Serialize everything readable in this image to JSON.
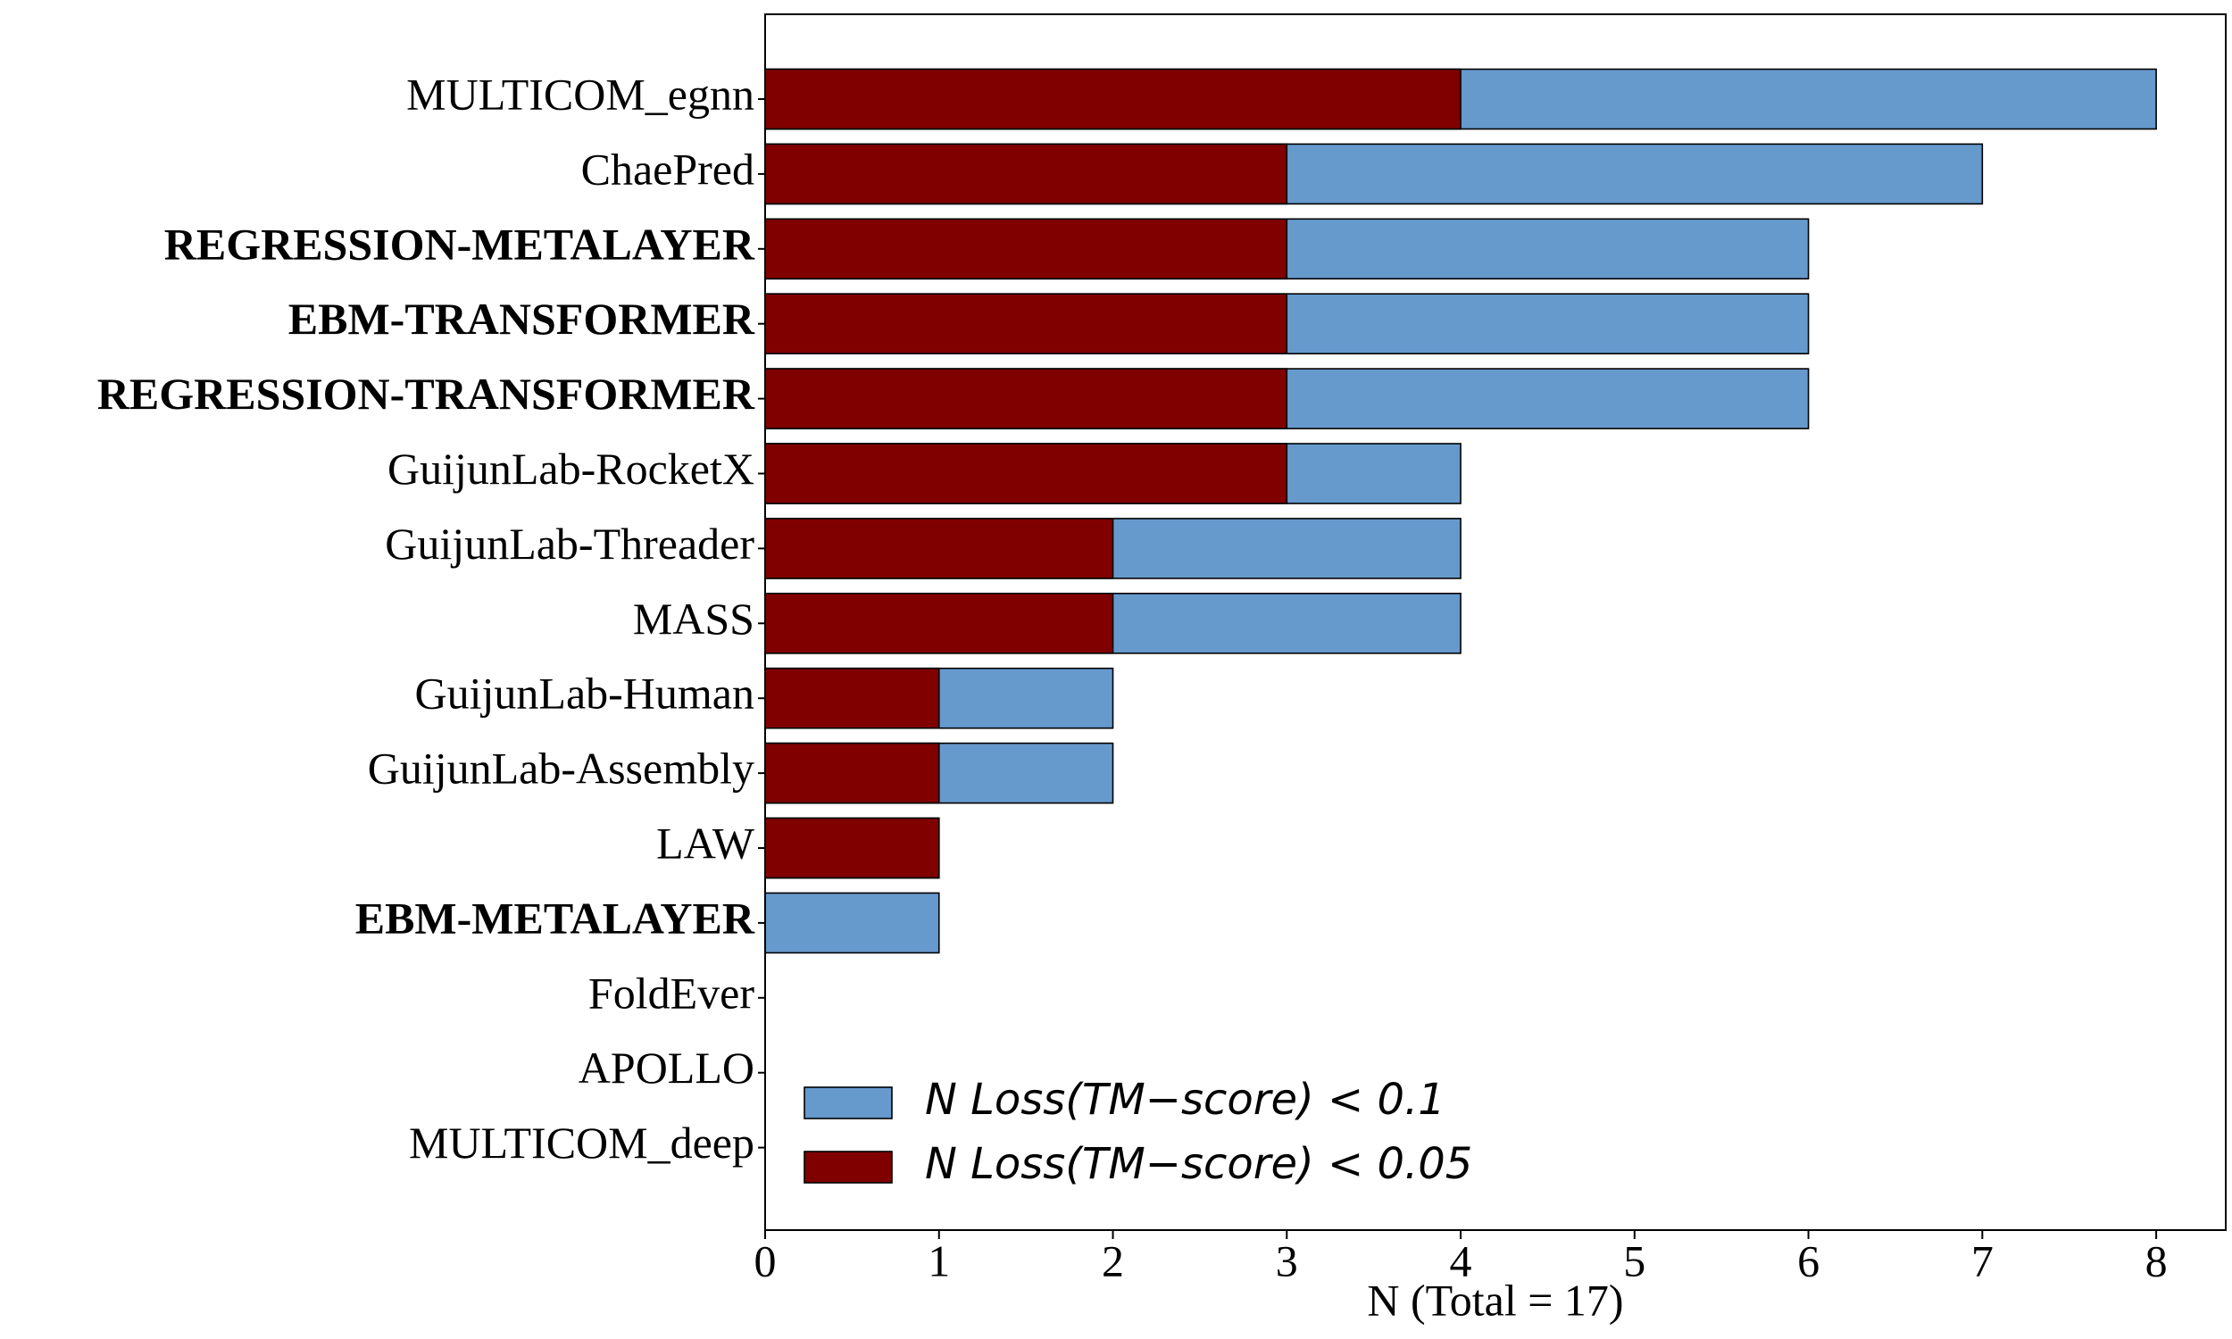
{
  "chart_data": {
    "type": "overlapped_barh",
    "categories": [
      "MULTICOM_egnn",
      "ChaePred",
      "REGRESSION-METALAYER",
      "EBM-TRANSFORMER",
      "REGRESSION-TRANSFORMER",
      "GuijunLab-RocketX",
      "GuijunLab-Threader",
      "MASS",
      "GuijunLab-Human",
      "GuijunLab-Assembly",
      "LAW",
      "EBM-METALAYER",
      "FoldEver",
      "APOLLO",
      "MULTICOM_deep"
    ],
    "bold": [
      false,
      false,
      true,
      true,
      true,
      false,
      false,
      false,
      false,
      false,
      false,
      true,
      false,
      false,
      false
    ],
    "series": [
      {
        "name": "N Loss(TM−score) < 0.1",
        "color": "#6699cc",
        "values": [
          8,
          7,
          6,
          6,
          6,
          4,
          4,
          4,
          2,
          2,
          1,
          1,
          0,
          0,
          0
        ]
      },
      {
        "name": "N Loss(TM−score) < 0.05",
        "color": "#800000",
        "values": [
          4,
          3,
          3,
          3,
          3,
          3,
          2,
          2,
          1,
          1,
          1,
          0,
          0,
          0,
          0
        ]
      }
    ],
    "x_label": "N (Total = 17)",
    "xlim": [
      0,
      8.4
    ],
    "xticks": [
      0,
      1,
      2,
      3,
      4,
      5,
      6,
      7,
      8
    ],
    "legend": "lower-left"
  }
}
